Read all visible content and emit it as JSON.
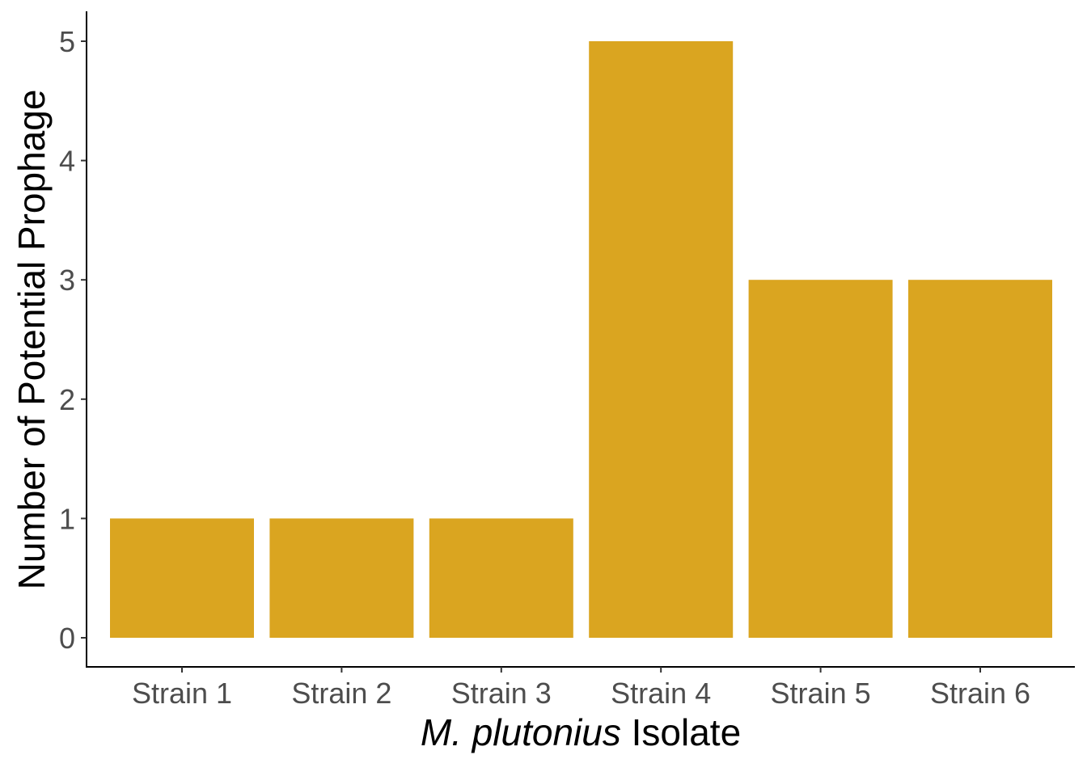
{
  "chart_data": {
    "type": "bar",
    "categories": [
      "Strain 1",
      "Strain 2",
      "Strain 3",
      "Strain 4",
      "Strain 5",
      "Strain 6"
    ],
    "values": [
      1,
      1,
      1,
      5,
      3,
      3
    ],
    "title": "",
    "xlabel_italic": "M. plutonius",
    "xlabel_rest": " Isolate",
    "ylabel": "Number of Potential Prophage",
    "ylim": [
      0,
      5
    ],
    "yticks": [
      "0",
      "1",
      "2",
      "3",
      "4",
      "5"
    ],
    "bar_color": "#DAA520",
    "grid": false,
    "legend": "none"
  }
}
